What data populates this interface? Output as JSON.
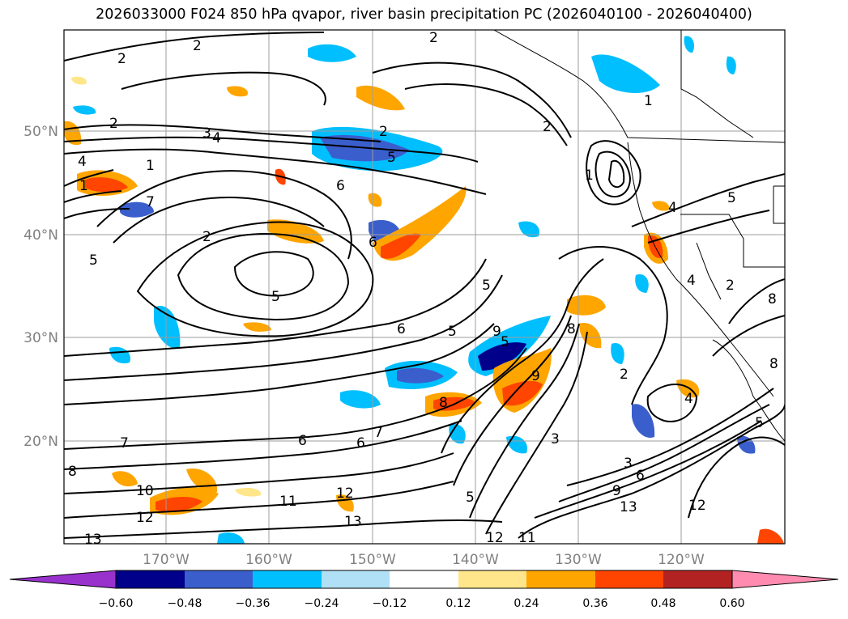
{
  "title": "2026033000 F024 850 hPa qvapor, river basin precipitation PC (2026040100 - 2026040400)",
  "map": {
    "projection": "mercator-like",
    "lon_range": [
      -180,
      -110
    ],
    "lat_range": [
      10,
      60
    ],
    "grid": true,
    "lat_labels": [
      "50°N",
      "40°N",
      "30°N",
      "20°N"
    ],
    "lon_labels": [
      "170°W",
      "160°W",
      "150°W",
      "140°W",
      "130°W",
      "120°W"
    ]
  },
  "contours": {
    "field": "850 hPa qvapor",
    "color": "#000000",
    "labels": [
      "2",
      "2",
      "2",
      "2",
      "2",
      "2",
      "1",
      "1",
      "1",
      "1",
      "3",
      "4",
      "4",
      "4",
      "5",
      "5",
      "5",
      "5",
      "6",
      "6",
      "7",
      "7",
      "7",
      "6",
      "6",
      "6",
      "5",
      "5",
      "5",
      "5",
      "9",
      "9",
      "8",
      "8",
      "3",
      "2",
      "3",
      "6",
      "9",
      "12",
      "13",
      "12",
      "11",
      "12",
      "13",
      "11",
      "10",
      "12",
      "13",
      "8",
      "2",
      "5",
      "4",
      "8",
      "8",
      "2",
      "4"
    ]
  },
  "colorbar": {
    "ticks": [
      "−0.60",
      "−0.48",
      "−0.36",
      "−0.24",
      "−0.12",
      "0.12",
      "0.24",
      "0.36",
      "0.48",
      "0.60"
    ],
    "colors": [
      "#9932cc",
      "#00008b",
      "#3a5fcd",
      "#00bfff",
      "#b0e0f5",
      "#ffffff",
      "#ffe68a",
      "#ffa500",
      "#ff4500",
      "#b22222",
      "#ff8cb0"
    ]
  }
}
